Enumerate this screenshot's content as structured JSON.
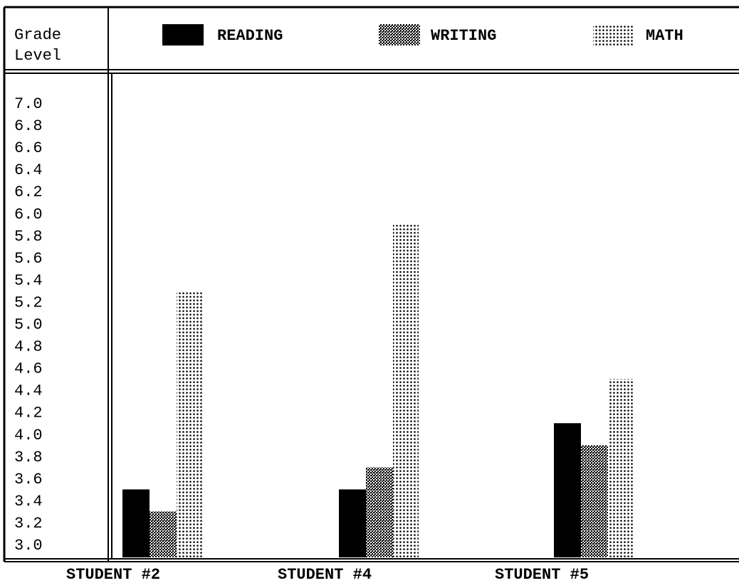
{
  "chart_data": {
    "type": "bar",
    "ylabel_line1": "Grade",
    "ylabel_line2": "Level",
    "yticks": [
      "7.0",
      "6.8",
      "6.6",
      "6.4",
      "6.2",
      "6.0",
      "5.8",
      "5.6",
      "5.4",
      "5.2",
      "5.0",
      "4.8",
      "4.6",
      "4.4",
      "4.2",
      "4.0",
      "3.8",
      "3.6",
      "3.4",
      "3.2",
      "3.0"
    ],
    "ylim": [
      2.9,
      7.0
    ],
    "categories": [
      "STUDENT #2",
      "STUDENT #4",
      "STUDENT #5"
    ],
    "series": [
      {
        "name": "READING",
        "values": [
          3.5,
          3.5,
          4.1
        ],
        "pattern": "solid"
      },
      {
        "name": "WRITING",
        "values": [
          3.3,
          3.7,
          3.9
        ],
        "pattern": "crosshatch"
      },
      {
        "name": "MATH",
        "values": [
          5.3,
          5.9,
          4.5
        ],
        "pattern": "dots"
      }
    ],
    "legend_position": "top",
    "grid": false
  },
  "colors": {
    "ink": "#000000",
    "paper": "#ffffff"
  }
}
